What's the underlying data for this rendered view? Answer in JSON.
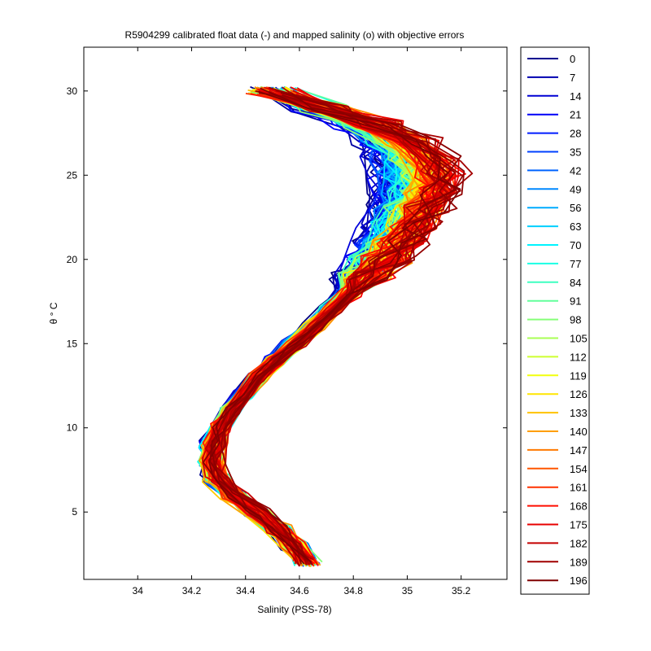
{
  "chart_data": {
    "type": "line",
    "title": "R5904299 calibrated float data (-) and mapped salinity (o) with objective errors",
    "xlabel": "Salinity (PSS-78)",
    "ylabel": "θ ° C",
    "xlim": [
      33.8,
      35.37
    ],
    "ylim": [
      1,
      32.6
    ],
    "x_ticks": [
      "34",
      "34.2",
      "34.4",
      "34.6",
      "34.8",
      "35",
      "35.2"
    ],
    "y_ticks": [
      "5",
      "10",
      "15",
      "20",
      "25",
      "30"
    ],
    "legend_placement": "outside-right",
    "grid": false,
    "profile_count": 200,
    "colormap": "jet",
    "legend": [
      {
        "label": "0",
        "color": "#00008f"
      },
      {
        "label": "7",
        "color": "#0000b0"
      },
      {
        "label": "14",
        "color": "#0000d4"
      },
      {
        "label": "21",
        "color": "#0000f8"
      },
      {
        "label": "28",
        "color": "#001cff"
      },
      {
        "label": "35",
        "color": "#0040ff"
      },
      {
        "label": "42",
        "color": "#0064ff"
      },
      {
        "label": "49",
        "color": "#0088ff"
      },
      {
        "label": "56",
        "color": "#00acff"
      },
      {
        "label": "63",
        "color": "#00d0ff"
      },
      {
        "label": "70",
        "color": "#00f4ff"
      },
      {
        "label": "77",
        "color": "#1affe4"
      },
      {
        "label": "84",
        "color": "#3effc0"
      },
      {
        "label": "91",
        "color": "#62ff9c"
      },
      {
        "label": "98",
        "color": "#86ff78"
      },
      {
        "label": "105",
        "color": "#aaff54"
      },
      {
        "label": "112",
        "color": "#ceff30"
      },
      {
        "label": "119",
        "color": "#f2ff0c"
      },
      {
        "label": "126",
        "color": "#ffe600"
      },
      {
        "label": "133",
        "color": "#ffc200"
      },
      {
        "label": "140",
        "color": "#ff9e00"
      },
      {
        "label": "147",
        "color": "#ff7a00"
      },
      {
        "label": "154",
        "color": "#ff5600"
      },
      {
        "label": "161",
        "color": "#ff3200"
      },
      {
        "label": "168",
        "color": "#ff0e00"
      },
      {
        "label": "175",
        "color": "#e80000"
      },
      {
        "label": "182",
        "color": "#c40000"
      },
      {
        "label": "189",
        "color": "#a00000"
      },
      {
        "label": "196",
        "color": "#800000"
      }
    ],
    "series_template": {
      "theta": [
        2.0,
        3.0,
        4.0,
        5.0,
        6.0,
        7.0,
        8.0,
        9.0,
        10.0,
        11.0,
        12.0,
        13.0,
        14.0,
        15.0,
        16.0,
        17.0,
        18.0,
        19.0,
        20.0,
        21.0,
        22.0,
        23.0,
        24.0,
        25.0,
        26.0,
        27.0,
        28.0,
        29.0,
        30.0
      ],
      "salinity_early": [
        34.63,
        34.58,
        34.52,
        34.44,
        34.35,
        34.28,
        34.26,
        34.27,
        34.3,
        34.34,
        34.39,
        34.44,
        34.5,
        34.57,
        34.64,
        34.7,
        34.76,
        34.81,
        34.85,
        34.88,
        34.9,
        34.92,
        34.93,
        34.92,
        34.9,
        34.88,
        34.8,
        34.65,
        34.5
      ],
      "salinity_late": [
        34.63,
        34.58,
        34.52,
        34.44,
        34.36,
        34.3,
        34.28,
        34.29,
        34.31,
        34.35,
        34.4,
        34.45,
        34.52,
        34.59,
        34.66,
        34.73,
        34.8,
        34.87,
        34.94,
        35.0,
        35.05,
        35.1,
        35.14,
        35.16,
        35.13,
        35.05,
        34.9,
        34.7,
        34.5
      ]
    }
  }
}
